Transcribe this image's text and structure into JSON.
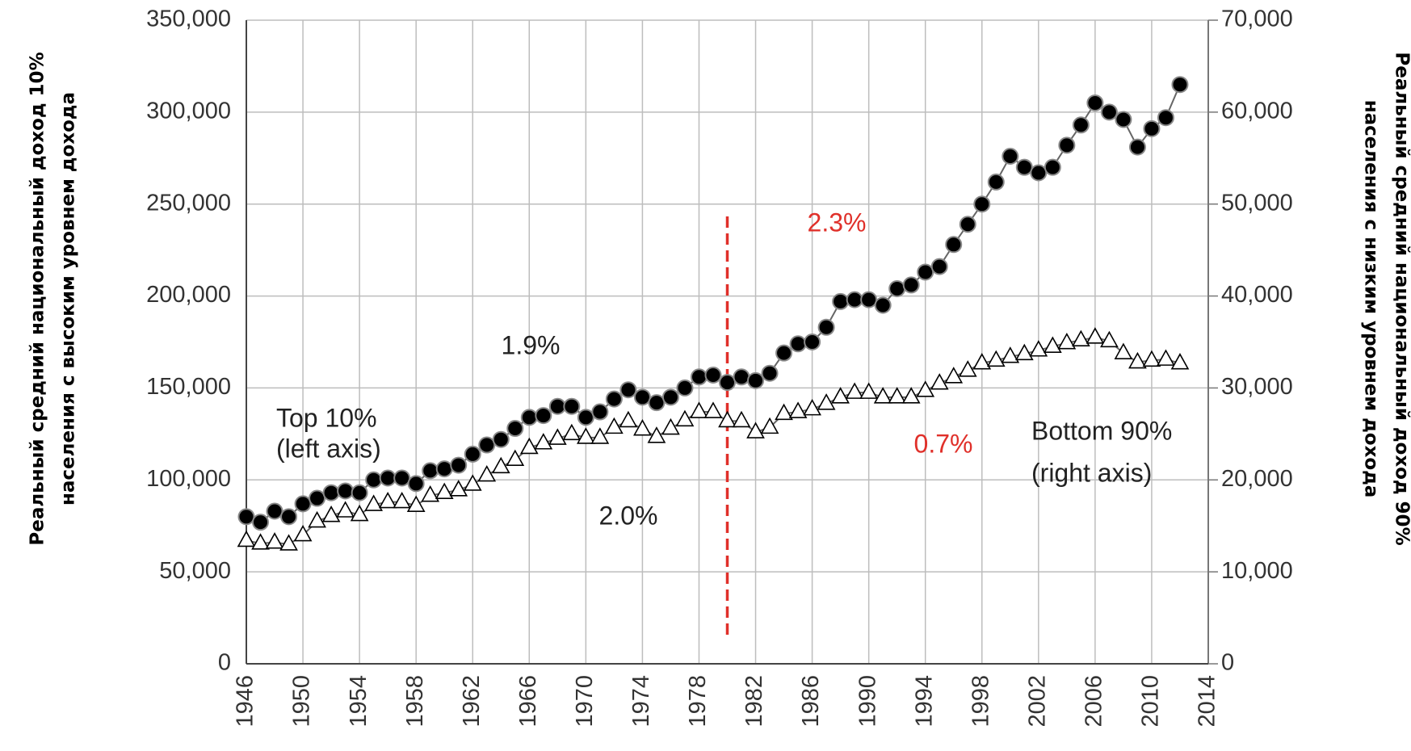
{
  "chart_data": {
    "type": "line",
    "x": [
      1946,
      1947,
      1948,
      1949,
      1950,
      1951,
      1952,
      1953,
      1954,
      1955,
      1956,
      1957,
      1958,
      1959,
      1960,
      1961,
      1962,
      1963,
      1964,
      1965,
      1966,
      1967,
      1968,
      1969,
      1970,
      1971,
      1972,
      1973,
      1974,
      1975,
      1976,
      1977,
      1978,
      1979,
      1980,
      1981,
      1982,
      1983,
      1984,
      1985,
      1986,
      1987,
      1988,
      1989,
      1990,
      1991,
      1992,
      1993,
      1994,
      1995,
      1996,
      1997,
      1998,
      1999,
      2000,
      2001,
      2002,
      2003,
      2004,
      2005,
      2006,
      2007,
      2008,
      2009,
      2010,
      2011,
      2012
    ],
    "series": [
      {
        "name": "Top 10%",
        "color": "#000000",
        "marker": "circle",
        "values": [
          80000,
          77000,
          83000,
          80000,
          87000,
          90000,
          93000,
          94000,
          93000,
          100000,
          101000,
          101000,
          98000,
          105000,
          106000,
          108000,
          114000,
          119000,
          122000,
          128000,
          134000,
          135000,
          140000,
          140000,
          134000,
          137000,
          144000,
          149000,
          145000,
          142000,
          145000,
          150000,
          156000,
          157000,
          153000,
          156000,
          154000,
          158000,
          169000,
          174000,
          175000,
          183000,
          197000,
          198000,
          198000,
          195000,
          204000,
          206000,
          213000,
          216000,
          228000,
          239000,
          250000,
          262000,
          276000,
          270000,
          267000,
          270000,
          282000,
          293000,
          305000,
          300000,
          296000,
          281000,
          291000,
          297000,
          315000
        ]
      },
      {
        "name": "Bottom 90%",
        "color": "#ffffff",
        "marker": "triangle",
        "axis": "y2",
        "values": [
          13400,
          13100,
          13200,
          13000,
          14000,
          15500,
          16100,
          16600,
          16200,
          17300,
          17600,
          17600,
          17200,
          18300,
          18600,
          18900,
          19500,
          20500,
          21400,
          22200,
          23500,
          24000,
          24500,
          25000,
          24600,
          24600,
          25700,
          26400,
          25500,
          24700,
          25600,
          26500,
          27400,
          27400,
          26400,
          26400,
          25200,
          25700,
          27200,
          27400,
          27700,
          28300,
          29000,
          29500,
          29500,
          29000,
          29000,
          29000,
          29700,
          30500,
          31200,
          31900,
          32700,
          33000,
          33400,
          33700,
          34100,
          34500,
          34900,
          35200,
          35500,
          35100,
          33800,
          32800,
          33000,
          33100,
          32700
        ]
      }
    ],
    "xlim": [
      1946,
      2014
    ],
    "xticks": [
      1946,
      1950,
      1954,
      1958,
      1962,
      1966,
      1970,
      1974,
      1978,
      1982,
      1986,
      1990,
      1994,
      1998,
      2002,
      2006,
      2010,
      2014
    ],
    "ylim": [
      0,
      350000
    ],
    "yticks": [
      0,
      {
        "value": 50000,
        "label": "50,000"
      },
      {
        "value": 100000,
        "label": "100,000"
      },
      {
        "value": 150000,
        "label": "150,000"
      },
      {
        "value": 200000,
        "label": "200,000"
      },
      {
        "value": 250000,
        "label": "250,000"
      },
      {
        "value": 300000,
        "label": "300,000"
      },
      {
        "value": 350000,
        "label": "350,000"
      }
    ],
    "y2lim": [
      0,
      70000
    ],
    "y2ticks": [
      0,
      {
        "value": 10000,
        "label": "10,000"
      },
      {
        "value": 20000,
        "label": "20,000"
      },
      {
        "value": 30000,
        "label": "30,000"
      },
      {
        "value": 40000,
        "label": "40,000"
      },
      {
        "value": 50000,
        "label": "50,000"
      },
      {
        "value": 60000,
        "label": "60,000"
      },
      {
        "value": 70000,
        "label": "70,000"
      }
    ],
    "ylabel": [
      "Реальный средний национальный доход 10%",
      "населения с высоким уровнем дохода"
    ],
    "y2label": [
      "Реальный средний национальный доход 90%",
      "населения  с низким уровнем дохода"
    ],
    "grid": true,
    "reference_line": {
      "x": 1980,
      "color": "#e0302a",
      "style": "dashed"
    },
    "annotations": [
      {
        "text": "1.9%",
        "color": "#222222"
      },
      {
        "text": "2.0%",
        "color": "#222222"
      },
      {
        "text": "2.3%",
        "color": "#e0302a"
      },
      {
        "text": "0.7%",
        "color": "#e0302a"
      },
      {
        "text": "Top 10%",
        "color": "#222222"
      },
      {
        "text": "(left axis)",
        "color": "#222222"
      },
      {
        "text": "Bottom 90%",
        "color": "#222222"
      },
      {
        "text": "(right axis)",
        "color": "#222222"
      }
    ]
  }
}
